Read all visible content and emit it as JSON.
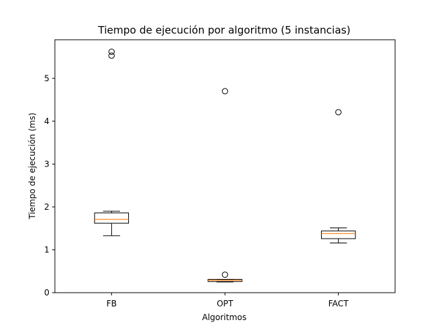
{
  "chart_data": {
    "type": "boxplot",
    "title": "Tiempo de ejecución por algoritmo (5 instancias)",
    "xlabel": "Algoritmos",
    "ylabel": "Tiempo de ejecución (ms)",
    "ylim": [
      0,
      5.9
    ],
    "yticks": [
      0,
      1,
      2,
      3,
      4,
      5
    ],
    "grid": false,
    "categories": [
      "FB",
      "OPT",
      "FACT"
    ],
    "boxes": [
      {
        "category": "FB",
        "whisker_low": 1.33,
        "q1": 1.62,
        "median": 1.71,
        "q3": 1.86,
        "whisker_high": 1.9,
        "fliers": [
          5.53,
          5.62
        ]
      },
      {
        "category": "OPT",
        "whisker_low": 0.25,
        "q1": 0.26,
        "median": 0.29,
        "q3": 0.31,
        "whisker_high": 0.31,
        "fliers": [
          0.42,
          4.7
        ]
      },
      {
        "category": "FACT",
        "whisker_low": 1.16,
        "q1": 1.26,
        "median": 1.38,
        "q3": 1.44,
        "whisker_high": 1.51,
        "fliers": [
          4.21
        ]
      }
    ],
    "colors": {
      "median": "#ff7f0e",
      "box": "#000000"
    }
  }
}
